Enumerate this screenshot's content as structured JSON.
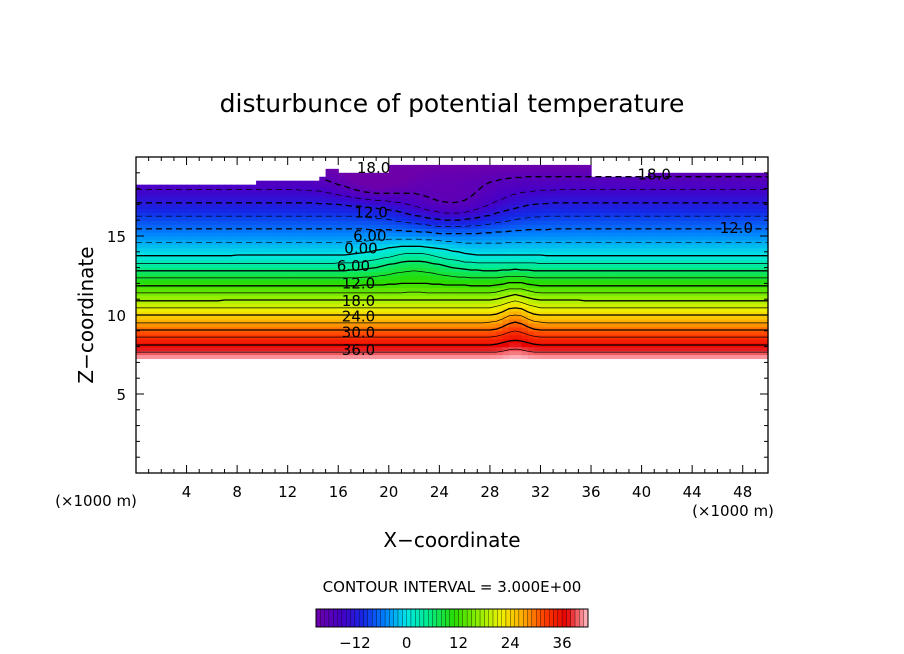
{
  "chart_data": {
    "type": "heatmap",
    "title": "disturbunce of potential temperature",
    "xlabel": "X−coordinate",
    "ylabel": "Z−coordinate",
    "x_unit_left": "(×1000 m)",
    "x_unit_right": "(×1000 m)",
    "xlim": [
      0,
      50
    ],
    "ylim": [
      0,
      20
    ],
    "x_ticks": [
      4,
      8,
      12,
      16,
      20,
      24,
      28,
      32,
      36,
      40,
      44,
      48
    ],
    "y_ticks": [
      5,
      10,
      15
    ],
    "contour_interval_text": "CONTOUR INTERVAL = 3.000E+00",
    "colorbar": {
      "range": [
        -21,
        42
      ],
      "ticks": [
        -12,
        0,
        12,
        24,
        36
      ],
      "tick_labels": [
        "−12",
        "0",
        "12",
        "24",
        "36"
      ]
    },
    "contour_labels": [
      {
        "text": "18.0",
        "x": 18.8,
        "z": 19.3
      },
      {
        "text": "18.0",
        "x": 41.0,
        "z": 18.9
      },
      {
        "text": "12.0",
        "x": 18.6,
        "z": 16.5
      },
      {
        "text": "12.0",
        "x": 47.5,
        "z": 15.5
      },
      {
        "text": "6.00",
        "x": 18.5,
        "z": 15.0
      },
      {
        "text": "0.00",
        "x": 17.8,
        "z": 14.2
      },
      {
        "text": "6.00",
        "x": 17.2,
        "z": 13.1
      },
      {
        "text": "12.0",
        "x": 17.6,
        "z": 12.0
      },
      {
        "text": "18.0",
        "x": 17.6,
        "z": 10.9
      },
      {
        "text": "24.0",
        "x": 17.6,
        "z": 9.9
      },
      {
        "text": "30.0",
        "x": 17.6,
        "z": 8.9
      },
      {
        "text": "36.0",
        "x": 17.6,
        "z": 7.8
      }
    ]
  }
}
